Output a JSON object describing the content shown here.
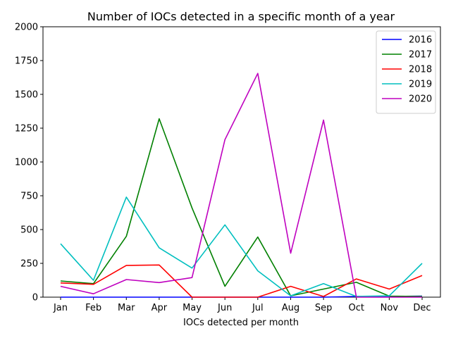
{
  "chart_data": {
    "type": "line",
    "title": "Number of IOCs detected in a specific month of a year",
    "xlabel": "IOCs detected per month",
    "ylabel": "",
    "categories": [
      "Jan",
      "Feb",
      "Mar",
      "Apr",
      "May",
      "Jun",
      "Jul",
      "Aug",
      "Sep",
      "Oct",
      "Nov",
      "Dec"
    ],
    "ylim": [
      0,
      2000
    ],
    "yticks": [
      "0",
      "250",
      "500",
      "750",
      "1000",
      "1250",
      "1500",
      "1750",
      "2000"
    ],
    "legend_position": "top-right",
    "grid": false,
    "series": [
      {
        "name": "2016",
        "color": "#0000ff",
        "values": [
          0,
          0,
          0,
          0,
          0,
          0,
          0,
          0,
          0,
          5,
          5,
          8
        ]
      },
      {
        "name": "2017",
        "color": "#008000",
        "values": [
          120,
          100,
          450,
          1320,
          660,
          80,
          445,
          10,
          60,
          110,
          8,
          5
        ]
      },
      {
        "name": "2018",
        "color": "#ff0000",
        "values": [
          105,
          95,
          235,
          238,
          0,
          0,
          0,
          80,
          5,
          135,
          60,
          160
        ]
      },
      {
        "name": "2019",
        "color": "#00bfbf",
        "values": [
          395,
          125,
          740,
          365,
          215,
          535,
          195,
          10,
          100,
          5,
          10,
          250
        ]
      },
      {
        "name": "2020",
        "color": "#bf00bf",
        "values": [
          80,
          25,
          130,
          108,
          145,
          1165,
          1655,
          325,
          1310,
          0,
          0,
          0
        ]
      }
    ]
  }
}
